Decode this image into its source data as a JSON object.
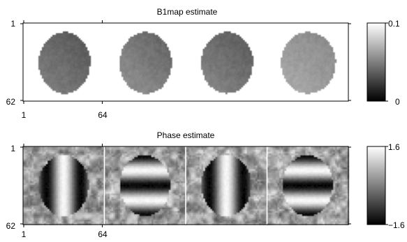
{
  "chart_data": [
    {
      "type": "heatmap",
      "title": "B1map estimate",
      "x_ticks": [
        "1",
        "64"
      ],
      "y_ticks": [
        "1",
        "62"
      ],
      "colorbar": {
        "min_label": "0",
        "max_label": "0.1",
        "range": [
          0,
          0.1
        ],
        "colormap": "gray"
      },
      "panels": [
        {
          "mean": 0.042,
          "gradient": 0.2,
          "texture": "smooth"
        },
        {
          "mean": 0.048,
          "gradient": 0.22,
          "texture": "smooth"
        },
        {
          "mean": 0.044,
          "gradient": 0.2,
          "texture": "smooth"
        },
        {
          "mean": 0.06,
          "gradient": 0.16,
          "texture": "smooth"
        }
      ]
    },
    {
      "type": "heatmap",
      "title": "Phase estimate",
      "x_ticks": [
        "1",
        "64"
      ],
      "y_ticks": [
        "1",
        "62"
      ],
      "colorbar": {
        "min_label": "−1.6",
        "max_label": "1.6",
        "range": [
          -1.6,
          1.6
        ],
        "colormap": "gray"
      },
      "panels": [
        {
          "stripes": "vertical"
        },
        {
          "stripes": "horizontal"
        },
        {
          "stripes": "vertical"
        },
        {
          "stripes": "horizontal"
        }
      ]
    }
  ]
}
